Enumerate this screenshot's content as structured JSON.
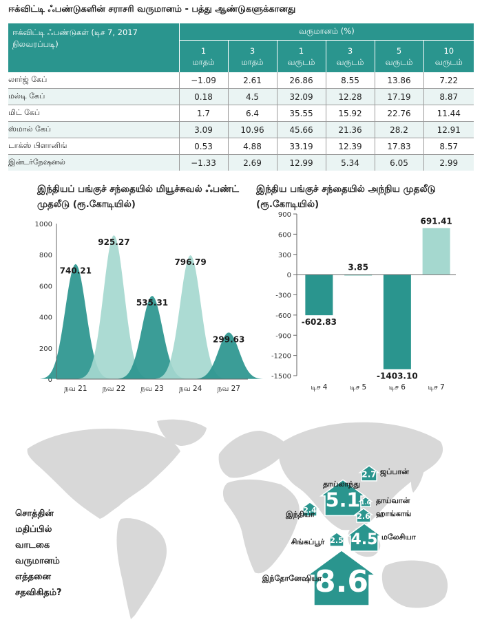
{
  "page_title": "ஈக்விட்டி ஃபண்டுகளின் சராசரி வருமானம் - பத்து ஆண்டுகளுக்கானது",
  "table": {
    "corner_label_line1": "ஈக்விட்டி ஃபண்டுகள் (டிச 7, 2017",
    "corner_label_line2": "நிலவரப்படி)",
    "group_header": "வருமானம் (%)",
    "periods": [
      {
        "num": "1",
        "unit": "மாதம்"
      },
      {
        "num": "3",
        "unit": "மாதம்"
      },
      {
        "num": "1",
        "unit": "வருடம்"
      },
      {
        "num": "3",
        "unit": "வருடம்"
      },
      {
        "num": "5",
        "unit": "வருடம்"
      },
      {
        "num": "10",
        "unit": "வருடம்"
      }
    ],
    "rows": [
      {
        "name": "லார்ஜ் கேப்",
        "values": [
          "−1.09",
          "2.61",
          "26.86",
          "8.55",
          "13.86",
          "7.22"
        ]
      },
      {
        "name": "மல்டி கேப்",
        "values": [
          "0.18",
          "4.5",
          "32.09",
          "12.28",
          "17.19",
          "8.87"
        ]
      },
      {
        "name": "மிட் கேப்",
        "values": [
          "1.7",
          "6.4",
          "35.55",
          "15.92",
          "22.76",
          "11.44"
        ]
      },
      {
        "name": "ஸ்மால் கேப்",
        "values": [
          "3.09",
          "10.96",
          "45.66",
          "21.36",
          "28.2",
          "12.91"
        ]
      },
      {
        "name": "டாக்ஸ் பிளானிங்",
        "values": [
          "0.53",
          "4.88",
          "33.19",
          "12.39",
          "17.83",
          "8.57"
        ]
      },
      {
        "name": "இன்டர்நேஷனல்",
        "values": [
          "−1.33",
          "2.69",
          "12.99",
          "5.34",
          "6.05",
          "2.99"
        ]
      }
    ]
  },
  "chart_data": [
    {
      "type": "area",
      "title": "இந்தியப் பங்குச் சந்தையில் மியூச்சுவல் ஃபண்ட் முதலீடு (ரூ.கோடியில்)",
      "categories": [
        "நவ 21",
        "நவ 22",
        "நவ 23",
        "நவ 24",
        "நவ 27"
      ],
      "values": [
        740.21,
        925.27,
        535.31,
        796.79,
        299.63
      ],
      "value_labels": [
        "740.21",
        "925.27",
        "535.31",
        "796.79",
        "299.63"
      ],
      "yticks": [
        "0",
        "200",
        "400",
        "600",
        "800",
        "1000"
      ],
      "ytick_values": [
        0,
        200,
        400,
        600,
        800,
        1000
      ],
      "ylim": [
        0,
        1000
      ],
      "colors": [
        "#2a958e",
        "#a5d8cf",
        "#2a958e",
        "#a5d8cf",
        "#2a958e"
      ]
    },
    {
      "type": "bar",
      "title": "இந்திய பங்குச் சந்தையில் அந்நிய முதலீடு (ரூ.கோடியில்)",
      "categories": [
        "டிச 4",
        "டிச 5",
        "டிச 6",
        "டிச 7"
      ],
      "values": [
        -602.83,
        3.85,
        -1403.1,
        691.41
      ],
      "value_labels": [
        "-602.83",
        "3.85",
        "-1403.10",
        "691.41"
      ],
      "yticks": [
        "900",
        "600",
        "300",
        "0",
        "-300",
        "-600",
        "-900",
        "-1200",
        "-1500"
      ],
      "ytick_values": [
        900,
        600,
        300,
        0,
        -300,
        -600,
        -900,
        -1200,
        -1500
      ],
      "ylim": [
        -1500,
        900
      ],
      "colors": [
        "#2a958e",
        "#a5d8cf",
        "#2a958e",
        "#a5d8cf"
      ]
    }
  ],
  "map": {
    "question_lines": [
      "சொத்தின்",
      "மதிப்பில்",
      "வாடகை",
      "வருமானம்",
      "எத்தனை",
      "சதவிகிதம்?"
    ],
    "countries": [
      {
        "name": "ஜப்பான்",
        "value": "2.7"
      },
      {
        "name": "தாய்லாந்து",
        "value": "5.1"
      },
      {
        "name": "தாய்வான்",
        "value": "1.6"
      },
      {
        "name": "இந்தியா",
        "value": "2.4"
      },
      {
        "name": "ஹாங்காங்",
        "value": "2.6"
      },
      {
        "name": "சிங்கப்பூர்",
        "value": "2.5"
      },
      {
        "name": "மலேசியா",
        "value": "4.5"
      },
      {
        "name": "இந்தோனேஷியா",
        "value": "8.6"
      }
    ],
    "colors": {
      "land": "#d8d8d8",
      "arrow": "#2a958e"
    }
  }
}
